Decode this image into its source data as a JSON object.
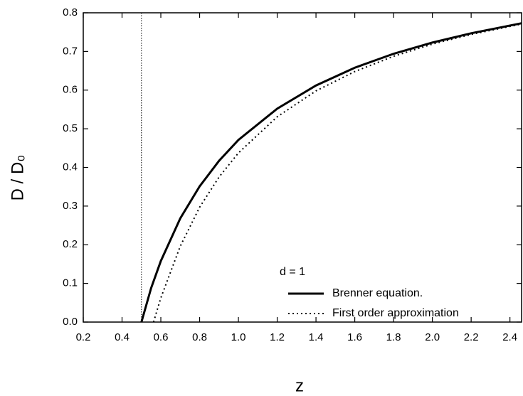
{
  "chart_data": {
    "type": "line",
    "x_label": "z",
    "y_label": "D / D₀",
    "annotation": "d = 1",
    "xlim": [
      0.2,
      2.46
    ],
    "ylim": [
      0,
      0.8
    ],
    "xticks": [
      0.2,
      0.4,
      0.6,
      0.8,
      {
        "value": 1,
        "label": "1.0"
      },
      1.2,
      1.4,
      1.6,
      1.8,
      {
        "value": 2,
        "label": "2.0"
      },
      2.2,
      2.4
    ],
    "yticks": [
      {
        "value": 0,
        "label": "0.0"
      },
      0.1,
      0.2,
      0.3,
      0.4,
      0.5,
      0.6,
      0.7,
      0.8
    ],
    "vline": 0.5,
    "legend": "lower right",
    "series": [
      {
        "name": "Brenner equation.",
        "color": "#000000",
        "style": "solid",
        "x": [
          0.5,
          0.55,
          0.6,
          0.7,
          0.8,
          0.9,
          1.0,
          1.2,
          1.4,
          1.6,
          1.8,
          2.0,
          2.2,
          2.46
        ],
        "values": [
          0,
          0.088,
          0.158,
          0.268,
          0.351,
          0.417,
          0.471,
          0.552,
          0.612,
          0.658,
          0.694,
          0.723,
          0.747,
          0.773
        ]
      },
      {
        "name": "First order approximation",
        "color": "#000000",
        "style": "dotted",
        "x": [
          0.5625,
          0.6,
          0.7,
          0.8,
          0.9,
          1.0,
          1.2,
          1.4,
          1.6,
          1.8,
          2.0,
          2.2,
          2.46
        ],
        "values": [
          0,
          0.0625,
          0.196,
          0.297,
          0.375,
          0.4375,
          0.531,
          0.598,
          0.648,
          0.6875,
          0.719,
          0.744,
          0.771
        ]
      }
    ]
  }
}
